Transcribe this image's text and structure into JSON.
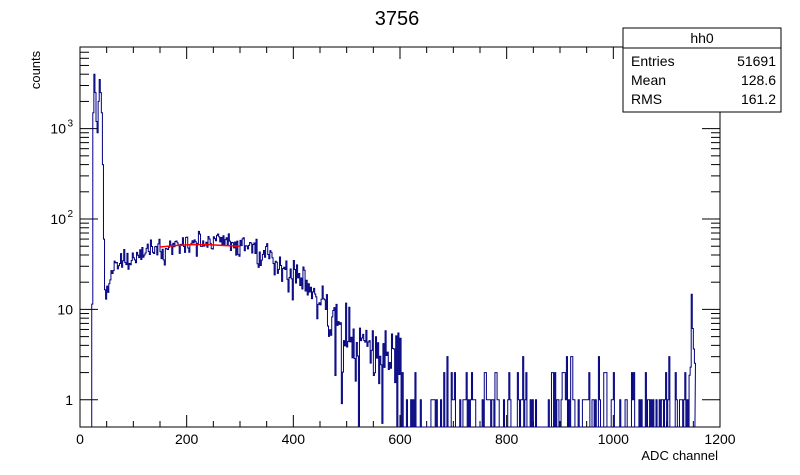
{
  "chart_data": {
    "type": "histogram",
    "title": "3756",
    "xlabel": "ADC channel",
    "ylabel": "counts",
    "xlim": [
      0,
      1200
    ],
    "ylim": [
      0.5,
      8000
    ],
    "y_scale": "log",
    "x_ticks": [
      "0",
      "200",
      "400",
      "600",
      "800",
      "1000",
      "1200"
    ],
    "y_ticks": [
      {
        "value": 1,
        "label": "1"
      },
      {
        "value": 10,
        "label": "10"
      },
      {
        "value": 100,
        "base": "10",
        "exp": "2"
      },
      {
        "value": 1000,
        "base": "10",
        "exp": "3"
      }
    ],
    "stats_box": {
      "name": "hh0",
      "rows": [
        {
          "label": "Entries",
          "value": "51691"
        },
        {
          "label": "Mean",
          "value": "128.6"
        },
        {
          "label": "RMS",
          "value": "161.2"
        }
      ]
    },
    "series": [
      {
        "color": "#000080",
        "points": [
          [
            22,
            1.0
          ],
          [
            25,
            1500
          ],
          [
            27,
            4000
          ],
          [
            29,
            2500
          ],
          [
            31,
            1200
          ],
          [
            33,
            900
          ],
          [
            35,
            2000
          ],
          [
            37,
            3500
          ],
          [
            39,
            2500
          ],
          [
            41,
            1500
          ],
          [
            43,
            400
          ],
          [
            45,
            60
          ],
          [
            48,
            15
          ],
          [
            52,
            17
          ],
          [
            56,
            22
          ],
          [
            60,
            26
          ],
          [
            70,
            28
          ],
          [
            80,
            33
          ],
          [
            90,
            36
          ],
          [
            100,
            38
          ],
          [
            120,
            43
          ],
          [
            140,
            46
          ],
          [
            160,
            49
          ],
          [
            180,
            52
          ],
          [
            200,
            54
          ],
          [
            220,
            55
          ],
          [
            240,
            56
          ],
          [
            260,
            56
          ],
          [
            280,
            55
          ],
          [
            300,
            52
          ],
          [
            320,
            48
          ],
          [
            340,
            42
          ],
          [
            360,
            36
          ],
          [
            380,
            30
          ],
          [
            400,
            24
          ],
          [
            420,
            19
          ],
          [
            440,
            14
          ],
          [
            460,
            11
          ],
          [
            480,
            8.5
          ],
          [
            500,
            6.5
          ],
          [
            520,
            5
          ],
          [
            540,
            4
          ],
          [
            560,
            3.2
          ],
          [
            580,
            2.7
          ],
          [
            600,
            2.2
          ],
          [
            620,
            1.9
          ],
          [
            640,
            1.7
          ],
          [
            660,
            1.5
          ],
          [
            700,
            1.3
          ],
          [
            750,
            1.25
          ],
          [
            800,
            1.2
          ],
          [
            850,
            1.2
          ],
          [
            900,
            1.2
          ],
          [
            950,
            1.2
          ],
          [
            1000,
            1.2
          ],
          [
            1050,
            1.2
          ],
          [
            1100,
            1.2
          ],
          [
            1140,
            1.2
          ],
          [
            1144,
            4
          ],
          [
            1146,
            12
          ],
          [
            1148,
            21
          ],
          [
            1150,
            8
          ],
          [
            1153,
            1.2
          ]
        ]
      }
    ],
    "fit": {
      "color": "#ff0000",
      "x_range": [
        150,
        300
      ],
      "y": [
        49,
        51,
        52,
        52,
        51,
        50
      ]
    },
    "grid": false,
    "legend": "none"
  }
}
